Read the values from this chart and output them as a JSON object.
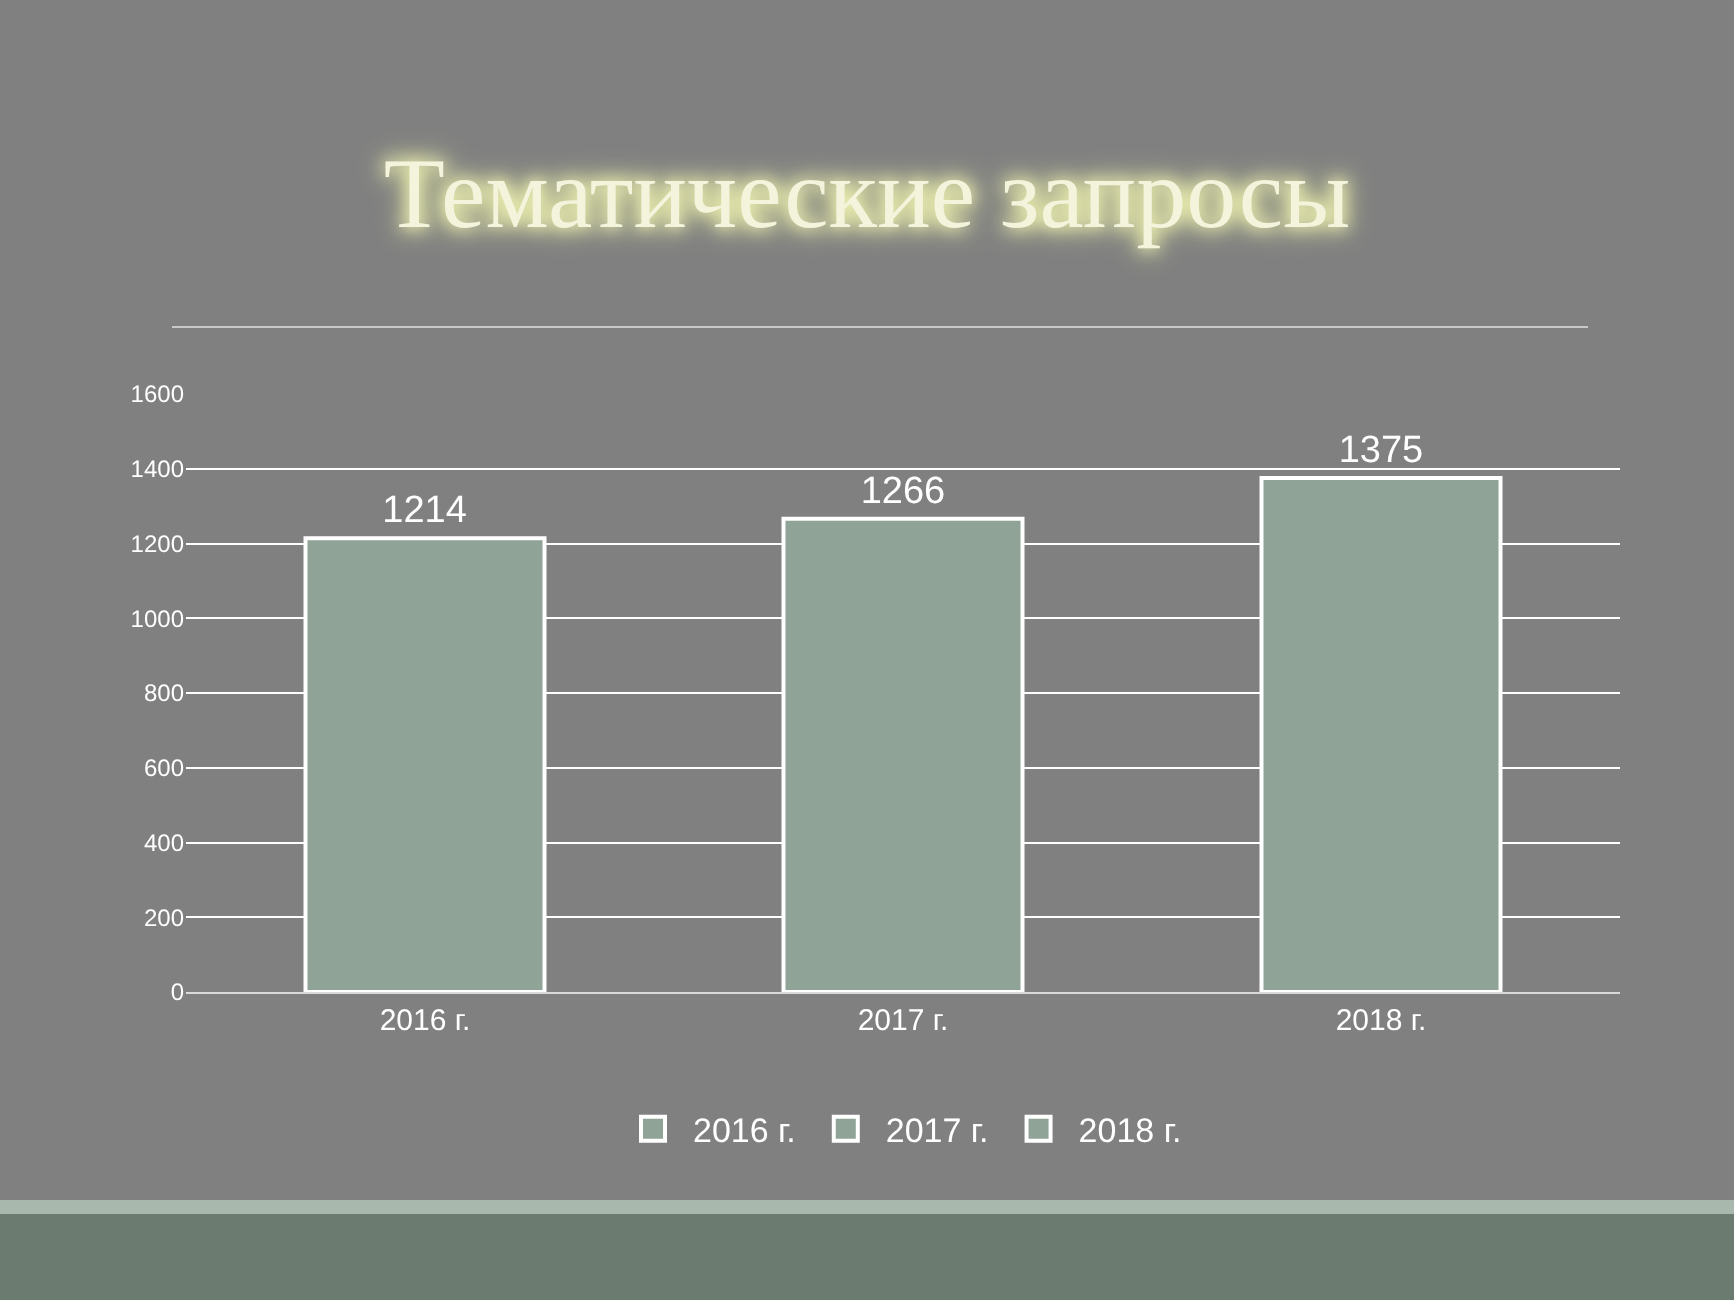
{
  "chart_data": {
    "type": "bar",
    "title": "Тематические запросы",
    "categories": [
      "2016 г.",
      "2017 г.",
      "2018 г."
    ],
    "series": [
      {
        "name": "2016 г.",
        "color": "#8fa396",
        "values": [
          1214,
          null,
          null
        ]
      },
      {
        "name": "2017 г.",
        "color": "#8fa396",
        "values": [
          null,
          1266,
          null
        ]
      },
      {
        "name": "2018 г.",
        "color": "#8fa396",
        "values": [
          null,
          null,
          1375
        ]
      }
    ],
    "ylim": [
      0,
      1600
    ],
    "yticks": [
      0,
      200,
      400,
      600,
      800,
      1000,
      1200,
      1400,
      1600
    ],
    "grid": "y",
    "legend": "bottom",
    "data_labels": true
  }
}
